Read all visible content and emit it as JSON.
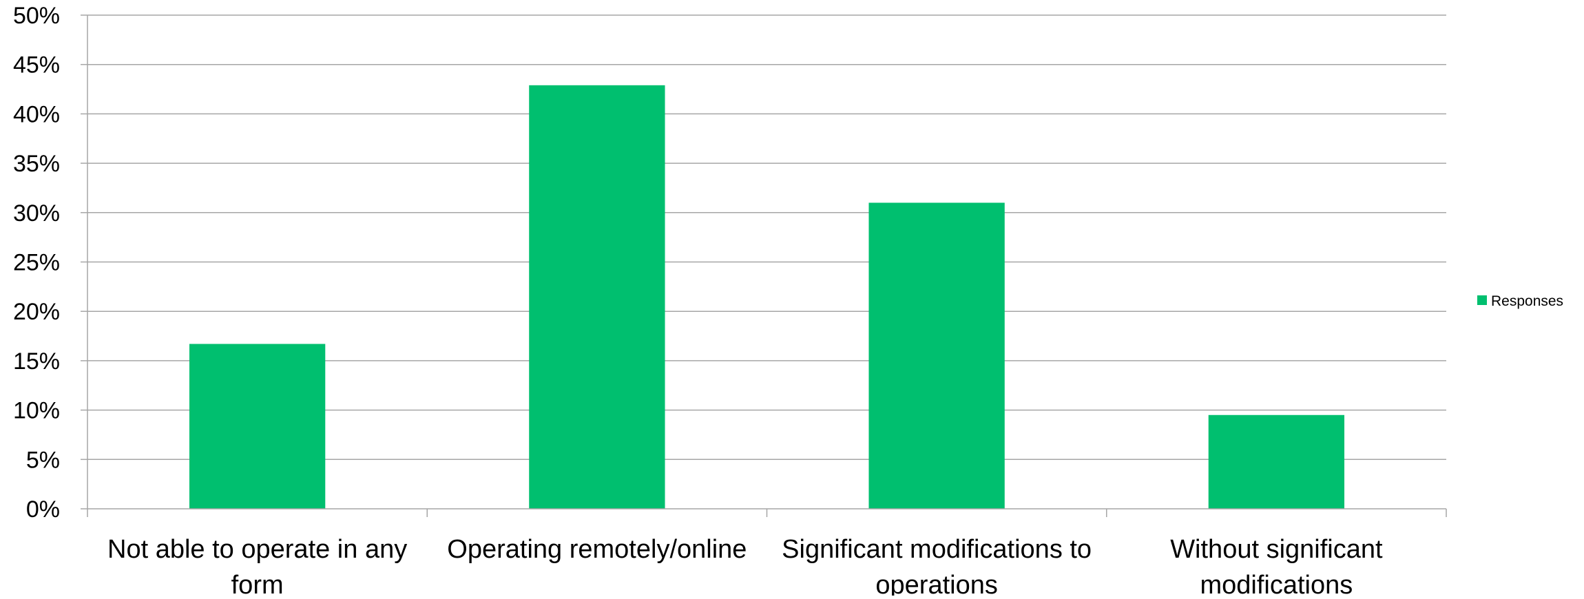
{
  "chart_data": {
    "type": "bar",
    "categories": [
      [
        "Not able to operate in any",
        "form"
      ],
      [
        "Operating remotely/online"
      ],
      [
        "Significant modifications to",
        "operations"
      ],
      [
        "Without significant",
        "modifications"
      ]
    ],
    "series": [
      {
        "name": "Responses",
        "values": [
          0.167,
          0.429,
          0.31,
          0.095
        ],
        "color": "#00BF6F"
      }
    ],
    "y_ticks": [
      "0%",
      "5%",
      "10%",
      "15%",
      "20%",
      "25%",
      "30%",
      "35%",
      "40%",
      "45%",
      "50%"
    ],
    "ylim": [
      0,
      0.5
    ],
    "y_step": 0.05,
    "grid": true,
    "legend_position": "right",
    "title": "",
    "xlabel": "",
    "ylabel": ""
  }
}
